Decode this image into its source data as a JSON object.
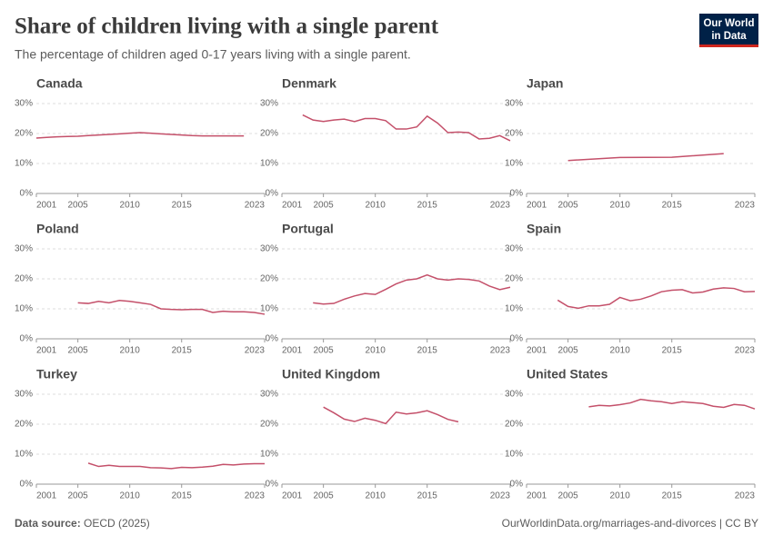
{
  "header": {
    "title": "Share of children living with a single parent",
    "subtitle": "The percentage of children aged 0-17 years living with a single parent.",
    "logo": [
      "Our World",
      "in Data"
    ]
  },
  "footer": {
    "source_label": "Data source:",
    "source": "OECD (2025)",
    "url": "OurWorldinData.org/marriages-and-divorces | CC BY"
  },
  "chart_data": [
    {
      "type": "line",
      "title": "Canada",
      "color": "#c4506a",
      "xlim": [
        2001,
        2023
      ],
      "ylim": [
        0,
        30
      ],
      "xticks": [
        2001,
        2005,
        2010,
        2015,
        2023
      ],
      "yticks": [
        {
          "value": 0,
          "label": "0%"
        },
        {
          "value": 10,
          "label": "10%"
        },
        {
          "value": 20,
          "label": "20%"
        },
        {
          "value": 30,
          "label": "30%"
        }
      ],
      "x": [
        2001,
        2002,
        2003,
        2004,
        2005,
        2006,
        2007,
        2008,
        2009,
        2010,
        2011,
        2012,
        2013,
        2014,
        2015,
        2016,
        2017,
        2018,
        2019,
        2020,
        2021
      ],
      "values": [
        18.5,
        18.7,
        18.9,
        19.0,
        19.1,
        19.3,
        19.5,
        19.7,
        19.9,
        20.1,
        20.3,
        20.1,
        19.9,
        19.7,
        19.5,
        19.3,
        19.2,
        19.2,
        19.2,
        19.2,
        19.2
      ]
    },
    {
      "type": "line",
      "title": "Denmark",
      "color": "#c4506a",
      "xlim": [
        2001,
        2023
      ],
      "ylim": [
        0,
        30
      ],
      "xticks": [
        2001,
        2005,
        2010,
        2015,
        2023
      ],
      "yticks": [
        {
          "value": 0,
          "label": "0%"
        },
        {
          "value": 10,
          "label": "10%"
        },
        {
          "value": 20,
          "label": "20%"
        },
        {
          "value": 30,
          "label": "30%"
        }
      ],
      "x": [
        2003,
        2004,
        2005,
        2006,
        2007,
        2008,
        2009,
        2010,
        2011,
        2012,
        2013,
        2014,
        2015,
        2016,
        2017,
        2018,
        2019,
        2020,
        2021,
        2022,
        2023
      ],
      "values": [
        26.2,
        24.5,
        24.0,
        24.5,
        24.8,
        24.0,
        25.0,
        25.0,
        24.3,
        21.5,
        21.5,
        22.2,
        25.8,
        23.5,
        20.3,
        20.5,
        20.3,
        18.2,
        18.4,
        19.3,
        17.6
      ]
    },
    {
      "type": "line",
      "title": "Japan",
      "color": "#c4506a",
      "xlim": [
        2001,
        2023
      ],
      "ylim": [
        0,
        30
      ],
      "xticks": [
        2001,
        2005,
        2010,
        2015,
        2023
      ],
      "yticks": [
        {
          "value": 0,
          "label": "0%"
        },
        {
          "value": 10,
          "label": "10%"
        },
        {
          "value": 20,
          "label": "20%"
        },
        {
          "value": 30,
          "label": "30%"
        }
      ],
      "x": [
        2005,
        2010,
        2015,
        2020
      ],
      "values": [
        11.0,
        12.0,
        12.1,
        13.3
      ]
    },
    {
      "type": "line",
      "title": "Poland",
      "color": "#c4506a",
      "xlim": [
        2001,
        2023
      ],
      "ylim": [
        0,
        30
      ],
      "xticks": [
        2001,
        2005,
        2010,
        2015,
        2023
      ],
      "yticks": [
        {
          "value": 0,
          "label": "0%"
        },
        {
          "value": 10,
          "label": "10%"
        },
        {
          "value": 20,
          "label": "20%"
        },
        {
          "value": 30,
          "label": "30%"
        }
      ],
      "x": [
        2005,
        2006,
        2007,
        2008,
        2009,
        2010,
        2011,
        2012,
        2013,
        2014,
        2015,
        2016,
        2017,
        2018,
        2019,
        2020,
        2021,
        2022,
        2023
      ],
      "values": [
        12.0,
        11.8,
        12.5,
        12.0,
        12.8,
        12.5,
        12.0,
        11.5,
        10.0,
        9.8,
        9.7,
        9.8,
        9.8,
        8.8,
        9.2,
        9.0,
        9.0,
        8.8,
        8.2
      ]
    },
    {
      "type": "line",
      "title": "Portugal",
      "color": "#c4506a",
      "xlim": [
        2001,
        2023
      ],
      "ylim": [
        0,
        30
      ],
      "xticks": [
        2001,
        2005,
        2010,
        2015,
        2023
      ],
      "yticks": [
        {
          "value": 0,
          "label": "0%"
        },
        {
          "value": 10,
          "label": "10%"
        },
        {
          "value": 20,
          "label": "20%"
        },
        {
          "value": 30,
          "label": "30%"
        }
      ],
      "x": [
        2004,
        2005,
        2006,
        2007,
        2008,
        2009,
        2010,
        2011,
        2012,
        2013,
        2014,
        2015,
        2016,
        2017,
        2018,
        2019,
        2020,
        2021,
        2022,
        2023
      ],
      "values": [
        12.0,
        11.6,
        11.8,
        13.2,
        14.3,
        15.1,
        14.8,
        16.5,
        18.3,
        19.6,
        20.0,
        21.3,
        20.0,
        19.6,
        20.0,
        19.8,
        19.3,
        17.6,
        16.4,
        17.2
      ]
    },
    {
      "type": "line",
      "title": "Spain",
      "color": "#c4506a",
      "xlim": [
        2001,
        2023
      ],
      "ylim": [
        0,
        30
      ],
      "xticks": [
        2001,
        2005,
        2010,
        2015,
        2023
      ],
      "yticks": [
        {
          "value": 0,
          "label": "0%"
        },
        {
          "value": 10,
          "label": "10%"
        },
        {
          "value": 20,
          "label": "20%"
        },
        {
          "value": 30,
          "label": "30%"
        }
      ],
      "x": [
        2004,
        2005,
        2006,
        2007,
        2008,
        2009,
        2010,
        2011,
        2012,
        2013,
        2014,
        2015,
        2016,
        2017,
        2018,
        2019,
        2020,
        2021,
        2022,
        2023
      ],
      "values": [
        12.9,
        10.8,
        10.2,
        11.0,
        11.0,
        11.5,
        13.8,
        12.7,
        13.2,
        14.3,
        15.7,
        16.2,
        16.4,
        15.3,
        15.6,
        16.6,
        17.0,
        16.8,
        15.7,
        15.8
      ]
    },
    {
      "type": "line",
      "title": "Turkey",
      "color": "#c4506a",
      "xlim": [
        2001,
        2023
      ],
      "ylim": [
        0,
        30
      ],
      "xticks": [
        2001,
        2005,
        2010,
        2015,
        2023
      ],
      "yticks": [
        {
          "value": 0,
          "label": "0%"
        },
        {
          "value": 10,
          "label": "10%"
        },
        {
          "value": 20,
          "label": "20%"
        },
        {
          "value": 30,
          "label": "30%"
        }
      ],
      "x": [
        2006,
        2007,
        2008,
        2009,
        2010,
        2011,
        2012,
        2013,
        2014,
        2015,
        2016,
        2017,
        2018,
        2019,
        2020,
        2021,
        2022,
        2023
      ],
      "values": [
        7.0,
        5.9,
        6.3,
        5.9,
        5.9,
        5.9,
        5.5,
        5.4,
        5.2,
        5.6,
        5.5,
        5.7,
        6.0,
        6.6,
        6.4,
        6.7,
        6.8,
        6.8
      ]
    },
    {
      "type": "line",
      "title": "United Kingdom",
      "color": "#c4506a",
      "xlim": [
        2001,
        2023
      ],
      "ylim": [
        0,
        30
      ],
      "xticks": [
        2001,
        2005,
        2010,
        2015,
        2023
      ],
      "yticks": [
        {
          "value": 0,
          "label": "0%"
        },
        {
          "value": 10,
          "label": "10%"
        },
        {
          "value": 20,
          "label": "20%"
        },
        {
          "value": 30,
          "label": "30%"
        }
      ],
      "x": [
        2005,
        2006,
        2007,
        2008,
        2009,
        2010,
        2011,
        2012,
        2013,
        2014,
        2015,
        2016,
        2017,
        2018
      ],
      "values": [
        25.7,
        23.8,
        21.7,
        20.9,
        22.0,
        21.3,
        20.2,
        24.0,
        23.4,
        23.8,
        24.5,
        23.2,
        21.6,
        20.8
      ]
    },
    {
      "type": "line",
      "title": "United States",
      "color": "#c4506a",
      "xlim": [
        2001,
        2023
      ],
      "ylim": [
        0,
        30
      ],
      "xticks": [
        2001,
        2005,
        2010,
        2015,
        2023
      ],
      "yticks": [
        {
          "value": 0,
          "label": "0%"
        },
        {
          "value": 10,
          "label": "10%"
        },
        {
          "value": 20,
          "label": "20%"
        },
        {
          "value": 30,
          "label": "30%"
        }
      ],
      "x": [
        2007,
        2008,
        2009,
        2010,
        2011,
        2012,
        2013,
        2014,
        2015,
        2016,
        2017,
        2018,
        2019,
        2020,
        2021,
        2022,
        2023
      ],
      "values": [
        25.8,
        26.3,
        26.1,
        26.5,
        27.1,
        28.3,
        27.8,
        27.5,
        26.9,
        27.5,
        27.2,
        26.9,
        26.0,
        25.6,
        26.6,
        26.3,
        25.1
      ]
    }
  ]
}
